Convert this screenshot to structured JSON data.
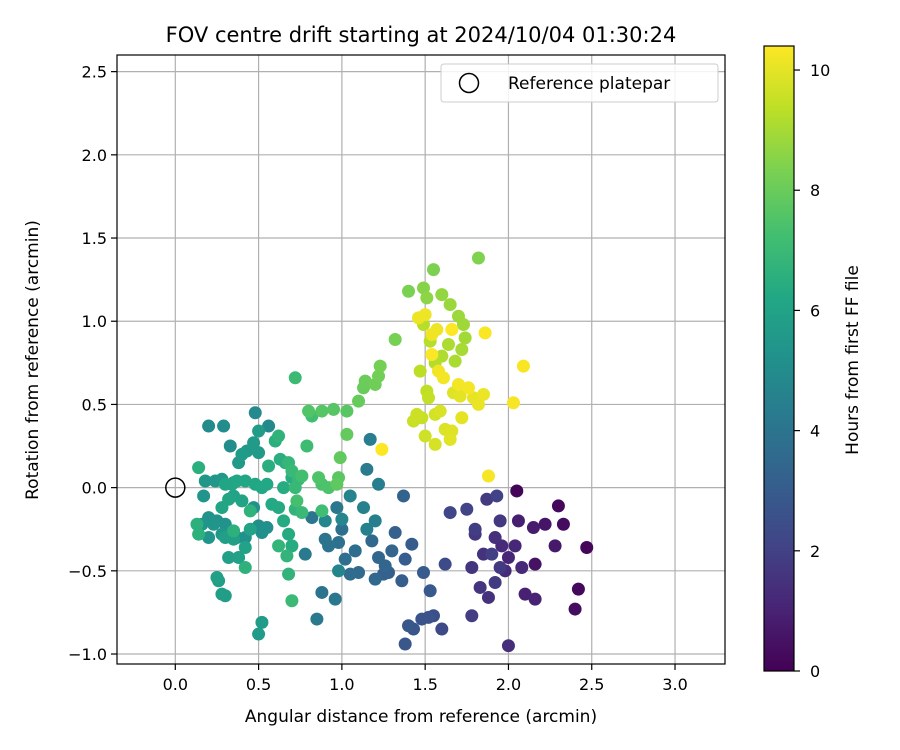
{
  "chart_data": {
    "type": "scatter",
    "title": "FOV centre drift starting at 2024/10/04 01:30:24",
    "xlabel": "Angular distance from reference (arcmin)",
    "ylabel": "Rotation from reference (arcmin)",
    "xlim": [
      -0.35,
      3.3
    ],
    "ylim": [
      -1.06,
      2.6
    ],
    "x_ticks": [
      0.0,
      0.5,
      1.0,
      1.5,
      2.0,
      2.5,
      3.0
    ],
    "x_tick_labels": [
      "0.0",
      "0.5",
      "1.0",
      "1.5",
      "2.0",
      "2.5",
      "3.0"
    ],
    "y_ticks": [
      -1.0,
      -0.5,
      0.0,
      0.5,
      1.0,
      1.5,
      2.0,
      2.5
    ],
    "y_tick_labels": [
      "−1.0",
      "−0.5",
      "0.0",
      "0.5",
      "1.0",
      "1.5",
      "2.0",
      "2.5"
    ],
    "grid": true,
    "legend": {
      "placement": "upper right",
      "entries": [
        {
          "label": "Reference platepar",
          "marker": "hollow circle",
          "color": "#000000"
        }
      ]
    },
    "reference_point": {
      "x": 0.0,
      "y": 0.0
    },
    "colorbar": {
      "label": "Hours from first FF file",
      "colormap": "viridis",
      "range": [
        0,
        10.4
      ],
      "ticks": [
        0,
        2,
        4,
        6,
        8,
        10
      ],
      "tick_labels": [
        "0",
        "2",
        "4",
        "6",
        "8",
        "10"
      ]
    },
    "points": [
      [
        2.05,
        -0.02,
        0.1
      ],
      [
        2.3,
        -0.11,
        0.2
      ],
      [
        2.33,
        -0.22,
        0.3
      ],
      [
        2.47,
        -0.36,
        0.15
      ],
      [
        2.42,
        -0.61,
        0.25
      ],
      [
        2.4,
        -0.73,
        0.35
      ],
      [
        2.16,
        -0.46,
        0.5
      ],
      [
        2.22,
        -0.22,
        0.6
      ],
      [
        2.28,
        -0.35,
        0.7
      ],
      [
        2.15,
        -0.24,
        0.8
      ],
      [
        2.06,
        -0.2,
        0.9
      ],
      [
        2.1,
        -0.64,
        0.95
      ],
      [
        2.16,
        -0.67,
        1.0
      ],
      [
        2.0,
        -0.42,
        1.1
      ],
      [
        2.04,
        -0.35,
        1.15
      ],
      [
        2.08,
        -0.48,
        1.2
      ],
      [
        1.96,
        -0.35,
        1.25
      ],
      [
        1.98,
        -0.5,
        1.3
      ],
      [
        2.0,
        -0.95,
        1.35
      ],
      [
        1.92,
        -0.3,
        1.4
      ],
      [
        1.88,
        -0.66,
        1.45
      ],
      [
        1.85,
        -0.4,
        1.5
      ],
      [
        1.83,
        -0.6,
        1.55
      ],
      [
        1.78,
        -0.48,
        1.6
      ],
      [
        1.8,
        -0.28,
        1.65
      ],
      [
        1.95,
        -0.2,
        1.7
      ],
      [
        1.87,
        -0.07,
        1.75
      ],
      [
        1.92,
        -0.57,
        1.8
      ],
      [
        1.78,
        -0.77,
        1.85
      ],
      [
        1.8,
        -0.25,
        1.9
      ],
      [
        1.9,
        -0.4,
        1.95
      ],
      [
        1.93,
        -0.05,
        2.0
      ],
      [
        1.95,
        -0.48,
        1.75
      ],
      [
        1.75,
        -0.13,
        2.1
      ],
      [
        1.65,
        -0.15,
        2.2
      ],
      [
        1.6,
        -0.85,
        2.3
      ],
      [
        1.62,
        -0.46,
        2.4
      ],
      [
        1.55,
        -0.77,
        2.5
      ],
      [
        1.52,
        -0.78,
        2.6
      ],
      [
        1.48,
        -0.79,
        2.7
      ],
      [
        1.43,
        -0.85,
        2.75
      ],
      [
        1.38,
        -0.94,
        2.8
      ],
      [
        1.4,
        -0.83,
        2.85
      ],
      [
        1.53,
        -0.62,
        2.9
      ],
      [
        1.49,
        -0.51,
        2.95
      ],
      [
        1.42,
        -0.34,
        3.0
      ],
      [
        1.38,
        -0.43,
        3.05
      ],
      [
        1.36,
        -0.56,
        3.1
      ],
      [
        1.28,
        -0.51,
        3.15
      ],
      [
        1.25,
        -0.52,
        3.2
      ],
      [
        1.32,
        -0.27,
        3.25
      ],
      [
        1.37,
        -0.05,
        3.3
      ],
      [
        1.3,
        -0.38,
        3.35
      ],
      [
        1.26,
        -0.47,
        3.4
      ],
      [
        1.22,
        -0.42,
        3.45
      ],
      [
        1.18,
        -0.32,
        3.5
      ],
      [
        1.2,
        -0.55,
        3.55
      ],
      [
        1.1,
        -0.51,
        3.6
      ],
      [
        1.05,
        -0.52,
        3.65
      ],
      [
        1.08,
        -0.38,
        3.7
      ],
      [
        1.02,
        -0.43,
        3.75
      ],
      [
        1.0,
        -0.25,
        3.8
      ],
      [
        0.98,
        -0.33,
        3.85
      ],
      [
        0.92,
        -0.35,
        3.9
      ],
      [
        0.88,
        -0.63,
        3.95
      ],
      [
        0.9,
        -0.31,
        4.0
      ],
      [
        0.82,
        -0.18,
        4.05
      ],
      [
        0.97,
        -0.12,
        4.1
      ],
      [
        0.96,
        -0.67,
        4.15
      ],
      [
        0.85,
        -0.79,
        4.2
      ],
      [
        0.78,
        -0.4,
        4.25
      ],
      [
        1.15,
        0.11,
        4.3
      ],
      [
        1.22,
        0.02,
        4.35
      ],
      [
        1.17,
        0.29,
        4.4
      ],
      [
        1.2,
        -0.2,
        4.45
      ],
      [
        1.15,
        -0.25,
        4.5
      ],
      [
        1.13,
        -0.12,
        4.55
      ],
      [
        1.05,
        -0.05,
        4.6
      ],
      [
        0.98,
        -0.5,
        4.7
      ],
      [
        1.0,
        -0.19,
        4.75
      ],
      [
        0.9,
        -0.2,
        4.8
      ],
      [
        0.56,
        0.37,
        4.85
      ],
      [
        0.48,
        0.45,
        4.9
      ],
      [
        0.2,
        0.37,
        4.95
      ],
      [
        0.29,
        0.37,
        5.0
      ],
      [
        0.33,
        0.25,
        5.05
      ],
      [
        0.5,
        -0.23,
        5.1
      ],
      [
        0.55,
        -0.24,
        5.12
      ],
      [
        0.52,
        -0.27,
        5.15
      ],
      [
        0.47,
        -0.12,
        5.18
      ],
      [
        0.42,
        -0.3,
        5.2
      ],
      [
        0.37,
        -0.3,
        5.22
      ],
      [
        0.3,
        -0.22,
        5.25
      ],
      [
        0.25,
        -0.2,
        5.28
      ],
      [
        0.2,
        -0.18,
        5.3
      ],
      [
        0.17,
        -0.05,
        5.32
      ],
      [
        0.16,
        -0.22,
        5.35
      ],
      [
        0.2,
        -0.3,
        5.38
      ],
      [
        0.23,
        -0.22,
        5.4
      ],
      [
        0.28,
        -0.28,
        5.42
      ],
      [
        0.18,
        0.04,
        5.45
      ],
      [
        0.24,
        0.04,
        5.48
      ],
      [
        0.28,
        0.05,
        5.5
      ],
      [
        0.35,
        0.03,
        5.52
      ],
      [
        0.38,
        0.15,
        5.55
      ],
      [
        0.43,
        0.22,
        5.58
      ],
      [
        0.47,
        0.27,
        5.6
      ],
      [
        0.5,
        0.21,
        5.62
      ],
      [
        0.4,
        0.2,
        5.65
      ],
      [
        0.5,
        0.34,
        5.68
      ],
      [
        0.52,
        -0.81,
        5.7
      ],
      [
        0.5,
        -0.88,
        5.72
      ],
      [
        0.3,
        -0.65,
        5.75
      ],
      [
        0.28,
        -0.64,
        5.78
      ],
      [
        0.26,
        -0.56,
        5.8
      ],
      [
        0.25,
        -0.54,
        5.82
      ],
      [
        0.32,
        -0.42,
        5.85
      ],
      [
        0.3,
        -0.3,
        5.88
      ],
      [
        0.35,
        -0.31,
        5.9
      ],
      [
        0.38,
        -0.42,
        5.92
      ],
      [
        0.42,
        -0.36,
        5.95
      ],
      [
        0.45,
        -0.25,
        5.98
      ],
      [
        0.4,
        -0.08,
        6.0
      ],
      [
        0.35,
        -0.05,
        6.02
      ],
      [
        0.32,
        -0.07,
        6.05
      ],
      [
        0.28,
        -0.12,
        6.08
      ],
      [
        0.3,
        0.02,
        6.1
      ],
      [
        0.34,
        0.02,
        6.12
      ],
      [
        0.37,
        0.04,
        6.15
      ],
      [
        0.42,
        0.04,
        6.18
      ],
      [
        0.48,
        0.02,
        6.2
      ],
      [
        0.52,
        0.0,
        6.22
      ],
      [
        0.55,
        0.02,
        6.25
      ],
      [
        0.58,
        -0.1,
        6.28
      ],
      [
        0.62,
        -0.12,
        6.3
      ],
      [
        0.65,
        -0.2,
        6.32
      ],
      [
        0.68,
        -0.28,
        6.35
      ],
      [
        0.7,
        -0.35,
        6.38
      ],
      [
        0.65,
        0.0,
        6.4
      ],
      [
        0.7,
        0.06,
        6.42
      ],
      [
        0.66,
        0.15,
        6.45
      ],
      [
        0.6,
        0.28,
        6.48
      ],
      [
        0.56,
        0.13,
        6.5
      ],
      [
        0.63,
        0.17,
        6.52
      ],
      [
        0.14,
        0.12,
        6.55
      ],
      [
        0.13,
        -0.22,
        6.58
      ],
      [
        0.14,
        -0.28,
        6.6
      ],
      [
        0.35,
        -0.26,
        6.62
      ],
      [
        0.42,
        -0.48,
        6.65
      ],
      [
        0.45,
        -0.14,
        6.68
      ],
      [
        0.62,
        0.31,
        6.7
      ],
      [
        0.72,
        -0.13,
        6.72
      ],
      [
        0.68,
        -0.52,
        6.75
      ],
      [
        0.67,
        -0.41,
        6.78
      ],
      [
        0.62,
        -0.35,
        6.8
      ],
      [
        0.68,
        0.15,
        6.85
      ],
      [
        0.72,
        0.0,
        6.9
      ],
      [
        0.74,
        0.05,
        6.92
      ],
      [
        0.7,
        0.1,
        6.95
      ],
      [
        0.76,
        -0.15,
        6.98
      ],
      [
        0.7,
        -0.68,
        7.0
      ],
      [
        0.72,
        0.66,
        7.05
      ],
      [
        0.79,
        0.25,
        7.1
      ],
      [
        0.88,
        -0.14,
        7.15
      ],
      [
        0.82,
        0.43,
        7.2
      ],
      [
        0.76,
        0.07,
        7.25
      ],
      [
        0.73,
        -0.08,
        7.3
      ],
      [
        0.88,
        0.02,
        7.4
      ],
      [
        0.92,
        0.0,
        7.45
      ],
      [
        0.86,
        0.06,
        7.5
      ],
      [
        0.8,
        0.46,
        7.55
      ],
      [
        0.88,
        0.46,
        7.6
      ],
      [
        0.95,
        0.47,
        7.65
      ],
      [
        1.03,
        0.46,
        7.7
      ],
      [
        0.98,
        0.06,
        7.75
      ],
      [
        0.97,
        0.02,
        7.8
      ],
      [
        0.99,
        0.18,
        7.85
      ],
      [
        1.03,
        0.32,
        7.9
      ],
      [
        1.1,
        0.52,
        7.95
      ],
      [
        1.13,
        0.6,
        8.0
      ],
      [
        1.14,
        0.64,
        8.05
      ],
      [
        1.2,
        0.62,
        8.1
      ],
      [
        1.22,
        0.67,
        8.15
      ],
      [
        1.23,
        0.73,
        8.2
      ],
      [
        1.32,
        0.89,
        8.25
      ],
      [
        1.4,
        1.18,
        8.3
      ],
      [
        1.55,
        1.31,
        8.35
      ],
      [
        1.82,
        1.38,
        8.4
      ],
      [
        1.49,
        1.2,
        8.5
      ],
      [
        1.51,
        1.14,
        8.6
      ],
      [
        1.6,
        1.16,
        8.7
      ],
      [
        1.65,
        1.1,
        8.8
      ],
      [
        1.7,
        1.03,
        8.85
      ],
      [
        1.73,
        0.98,
        8.9
      ],
      [
        1.74,
        0.9,
        8.95
      ],
      [
        1.72,
        0.83,
        9.0
      ],
      [
        1.68,
        0.76,
        9.05
      ],
      [
        1.64,
        0.86,
        9.1
      ],
      [
        1.6,
        0.79,
        9.15
      ],
      [
        1.56,
        0.75,
        9.2
      ],
      [
        1.53,
        0.88,
        9.25
      ],
      [
        1.49,
        0.98,
        9.3
      ],
      [
        1.47,
        0.7,
        9.35
      ],
      [
        1.51,
        0.58,
        9.4
      ],
      [
        1.52,
        0.54,
        9.45
      ],
      [
        1.48,
        0.42,
        9.5
      ],
      [
        1.43,
        0.4,
        9.55
      ],
      [
        1.45,
        0.44,
        9.6
      ],
      [
        1.5,
        0.31,
        9.65
      ],
      [
        1.56,
        0.44,
        9.7
      ],
      [
        1.56,
        0.26,
        9.75
      ],
      [
        1.59,
        0.46,
        9.8
      ],
      [
        1.62,
        0.35,
        9.85
      ],
      [
        1.67,
        0.57,
        9.9
      ],
      [
        1.66,
        0.34,
        9.92
      ],
      [
        1.65,
        0.29,
        9.95
      ],
      [
        1.71,
        0.55,
        9.98
      ],
      [
        1.72,
        0.42,
        10.0
      ],
      [
        1.79,
        0.54,
        10.05
      ],
      [
        1.82,
        0.5,
        10.08
      ],
      [
        1.85,
        0.56,
        10.1
      ],
      [
        1.46,
        1.02,
        10.12
      ],
      [
        1.5,
        1.04,
        10.14
      ],
      [
        1.57,
        0.95,
        10.16
      ],
      [
        1.54,
        0.92,
        10.18
      ],
      [
        1.58,
        0.7,
        10.2
      ],
      [
        1.61,
        0.66,
        10.22
      ],
      [
        1.7,
        0.62,
        10.24
      ],
      [
        1.76,
        0.6,
        10.26
      ],
      [
        1.88,
        0.07,
        10.28
      ],
      [
        2.03,
        0.51,
        10.3
      ],
      [
        2.09,
        0.73,
        10.32
      ],
      [
        1.86,
        0.93,
        10.34
      ],
      [
        1.54,
        0.8,
        10.36
      ],
      [
        1.66,
        0.95,
        10.38
      ],
      [
        1.24,
        0.23,
        10.4
      ]
    ]
  }
}
